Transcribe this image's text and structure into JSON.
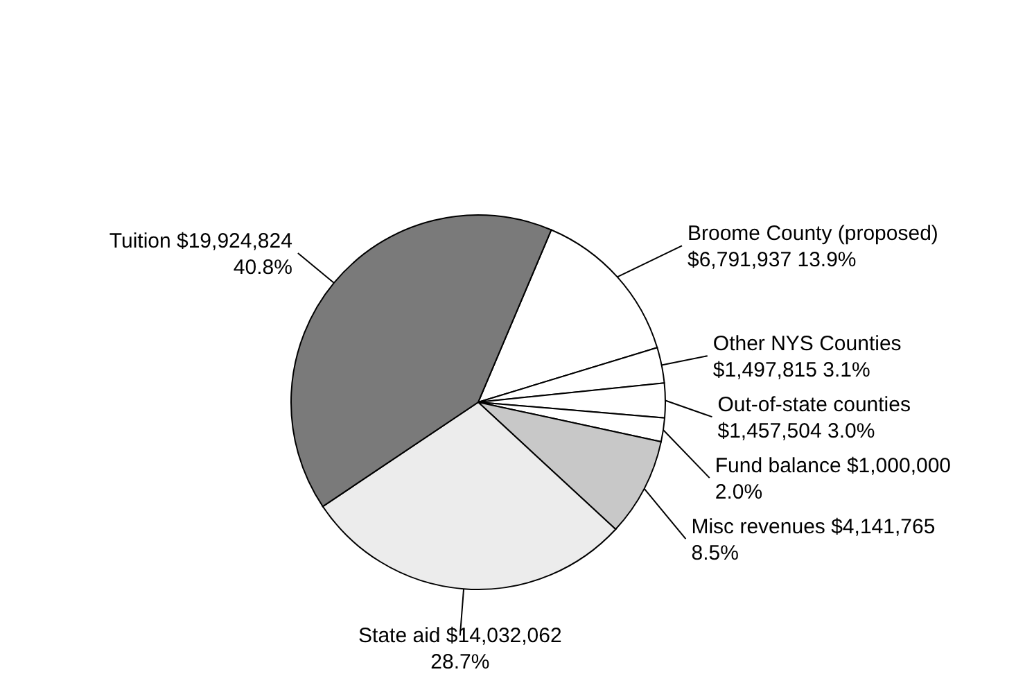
{
  "chart_data": {
    "type": "pie",
    "categories": [
      "Broome County (proposed)",
      "Other NYS Counties",
      "Out-of-state counties",
      "Fund balance",
      "Misc revenues",
      "State aid",
      "Tuition"
    ],
    "values": [
      6791937,
      1497815,
      1457504,
      1000000,
      4141765,
      14032062,
      19924824
    ],
    "colors": [
      "#ffffff",
      "#ffffff",
      "#ffffff",
      "#ffffff",
      "#c8c8c8",
      "#ececec",
      "#7a7a7a"
    ],
    "value_labels": [
      "$6,791,937 13.9%",
      "$1,497,815 3.1%",
      "$1,457,504 3.0%",
      "$1,000,000 2.0%",
      "$4,141,765 8.5%",
      "$14,032,062 28.7%",
      "$19,924,824 40.8%"
    ]
  }
}
